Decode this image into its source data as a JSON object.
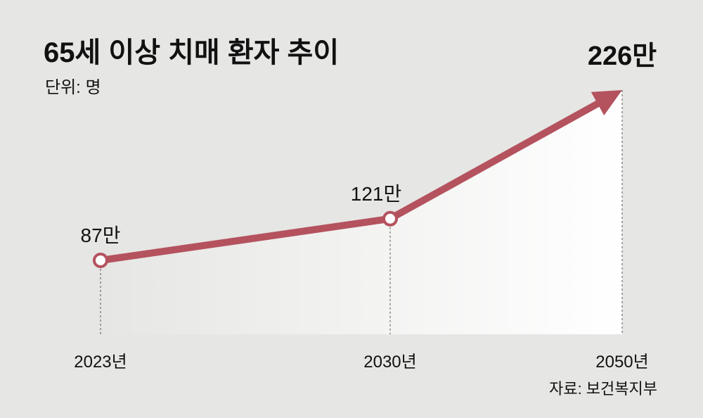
{
  "chart_data": {
    "type": "line",
    "title": "65세 이상 치매 환자 추이",
    "subtitle": "단위: 명",
    "source": "자료: 보건복지부",
    "categories": [
      "2023년",
      "2030년",
      "2050년"
    ],
    "series": [
      {
        "color": "#b4525e",
        "values": [
          87,
          121,
          226
        ],
        "value_labels": [
          "87만",
          "121만",
          "226만"
        ]
      }
    ]
  }
}
